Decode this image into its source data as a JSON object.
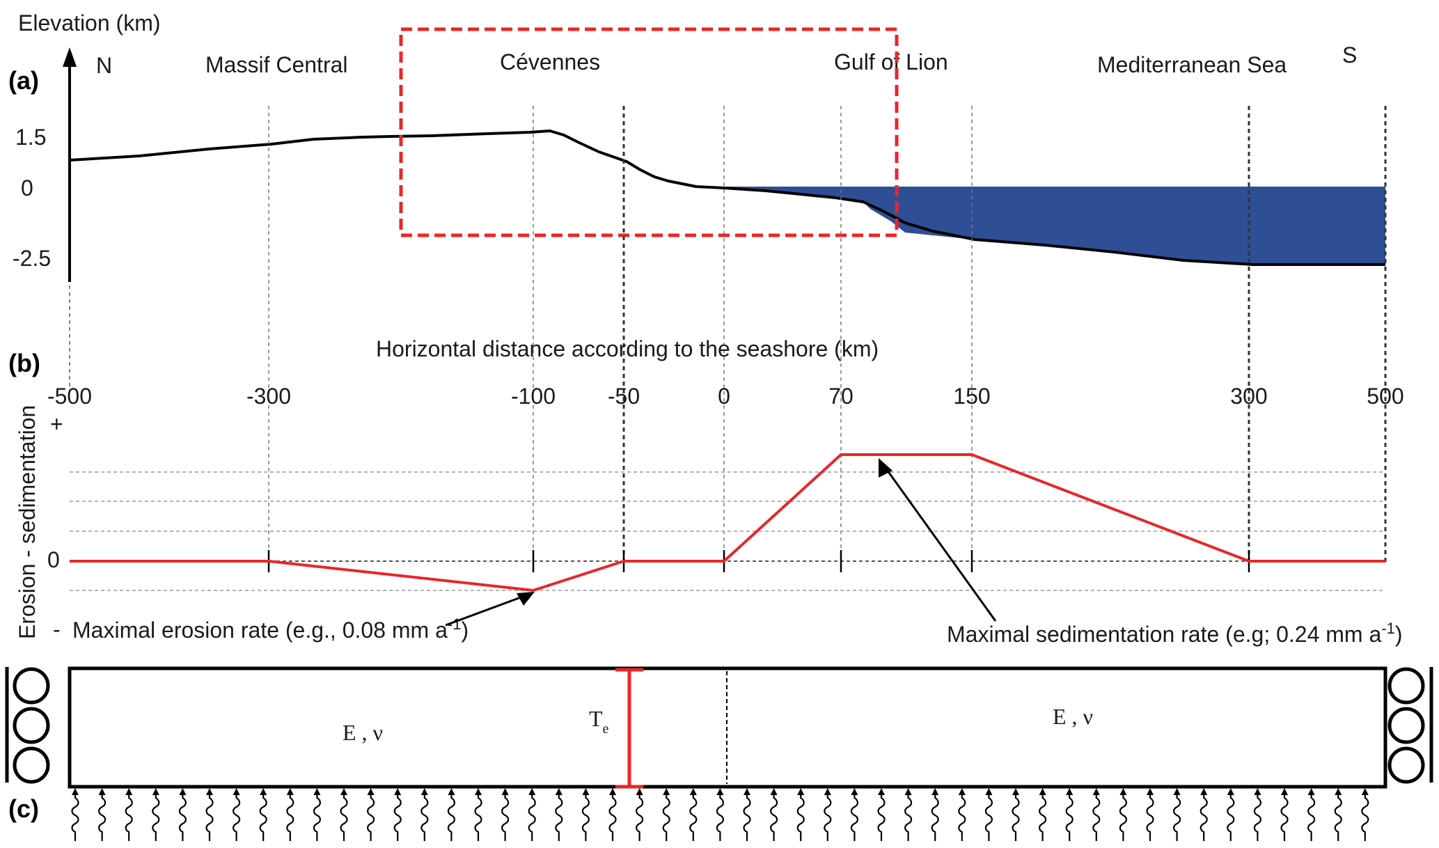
{
  "panels": {
    "a": "(a)",
    "b": "(b)",
    "c": "(c)"
  },
  "panel_a": {
    "ylabel": "Elevation (km)",
    "north": "N",
    "south": "S",
    "yticks": [
      "1.5",
      "0",
      "-2.5"
    ],
    "regions": [
      "Massif Central",
      "Cévennes",
      "Gulf of Lion",
      "Mediterranean Sea"
    ]
  },
  "panel_b": {
    "xlabel": "Horizontal distance according to the seashore (km)",
    "xticks": [
      "-500",
      "-300",
      "-100",
      "-50",
      "0",
      "70",
      "150",
      "300",
      "500"
    ],
    "ylabel": "Erosion - sedimentation",
    "yticks": {
      "plus": "+",
      "zero": "0",
      "minus": "-"
    },
    "erosion_annotation": {
      "text": "Maximal erosion rate (e.g., 0.08 mm a",
      "sup": "-1",
      "close": ")"
    },
    "sedimentation_annotation": {
      "text": "Maximal sedimentation rate (e.g; 0.24 mm a",
      "sup": "-1",
      "close": ")"
    }
  },
  "panel_c": {
    "param_left": "E , ν",
    "param_right": "E , ν",
    "thickness_label": "T",
    "thickness_sub": "e"
  },
  "chart_data": {
    "type": "line",
    "x_breakpoints_km": [
      -500,
      -300,
      -100,
      -50,
      0,
      70,
      150,
      300,
      500
    ],
    "rate_profile": {
      "x": [
        -500,
        -300,
        -100,
        -50,
        0,
        70,
        150,
        300,
        500
      ],
      "y": [
        0,
        0,
        -1,
        0,
        0,
        1,
        1,
        0,
        0
      ]
    },
    "colors": {
      "profile": "#e8262a",
      "sea": "#2e4f96",
      "box": "#e8262a"
    }
  }
}
